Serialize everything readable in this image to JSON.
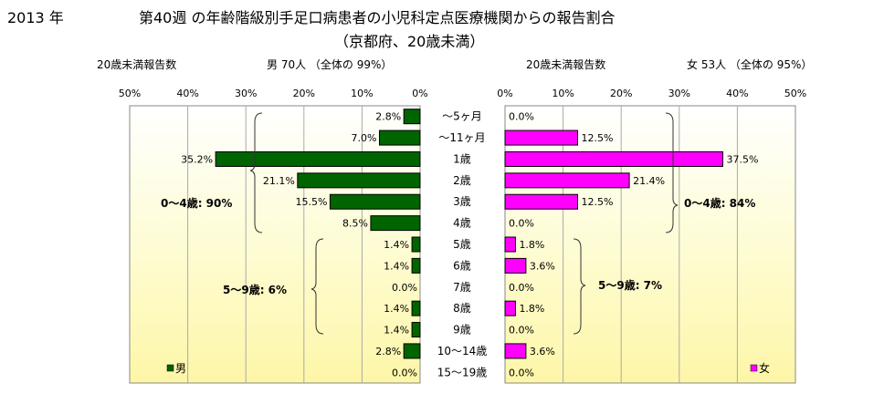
{
  "header": {
    "year": "2013 年",
    "title": "第40週 の年齢階級別手足口病患者の小児科定点医療機関からの報告割合",
    "subtitle": "（京都府、20歳未満）"
  },
  "male": {
    "summary_label": "20歳未満報告数",
    "summary_value": "男  70人 （全体の  99%）",
    "legend": "男",
    "bar_color": "#006400",
    "groups": [
      {
        "label": "0〜4歳:  90%"
      },
      {
        "label": "5〜9歳:  6%"
      }
    ]
  },
  "female": {
    "summary_label": "20歳未満報告数",
    "summary_value": "女  53人 （全体の  95%）",
    "legend": "女",
    "bar_color": "#ff00ff",
    "groups": [
      {
        "label": "0〜4歳:  84%"
      },
      {
        "label": "5〜9歳:  7%"
      }
    ]
  },
  "chart_data": {
    "type": "bar",
    "orientation": "horizontal",
    "layout": "population-pyramid",
    "xlim": [
      0,
      50
    ],
    "ticks": [
      0,
      10,
      20,
      30,
      40,
      50
    ],
    "tick_labels": [
      "0%",
      "10%",
      "20%",
      "30%",
      "40%",
      "50%"
    ],
    "grid": true,
    "categories": [
      "〜5ヶ月",
      "〜11ヶ月",
      "1歳",
      "2歳",
      "3歳",
      "4歳",
      "5歳",
      "6歳",
      "7歳",
      "8歳",
      "9歳",
      "10〜14歳",
      "15〜19歳"
    ],
    "series": [
      {
        "name": "男",
        "values": [
          2.8,
          7.0,
          35.2,
          21.1,
          15.5,
          8.5,
          1.4,
          1.4,
          0.0,
          1.4,
          1.4,
          2.8,
          0.0
        ],
        "labels": [
          "2.8%",
          "7.0%",
          "35.2%",
          "21.1%",
          "15.5%",
          "8.5%",
          "1.4%",
          "1.4%",
          "0.0%",
          "1.4%",
          "1.4%",
          "2.8%",
          "0.0%"
        ]
      },
      {
        "name": "女",
        "values": [
          0.0,
          12.5,
          37.5,
          21.4,
          12.5,
          0.0,
          1.8,
          3.6,
          0.0,
          1.8,
          0.0,
          3.6,
          0.0
        ],
        "labels": [
          "0.0%",
          "12.5%",
          "37.5%",
          "21.4%",
          "12.5%",
          "0.0%",
          "1.8%",
          "3.6%",
          "0.0%",
          "1.8%",
          "0.0%",
          "3.6%",
          "0.0%"
        ]
      }
    ]
  }
}
